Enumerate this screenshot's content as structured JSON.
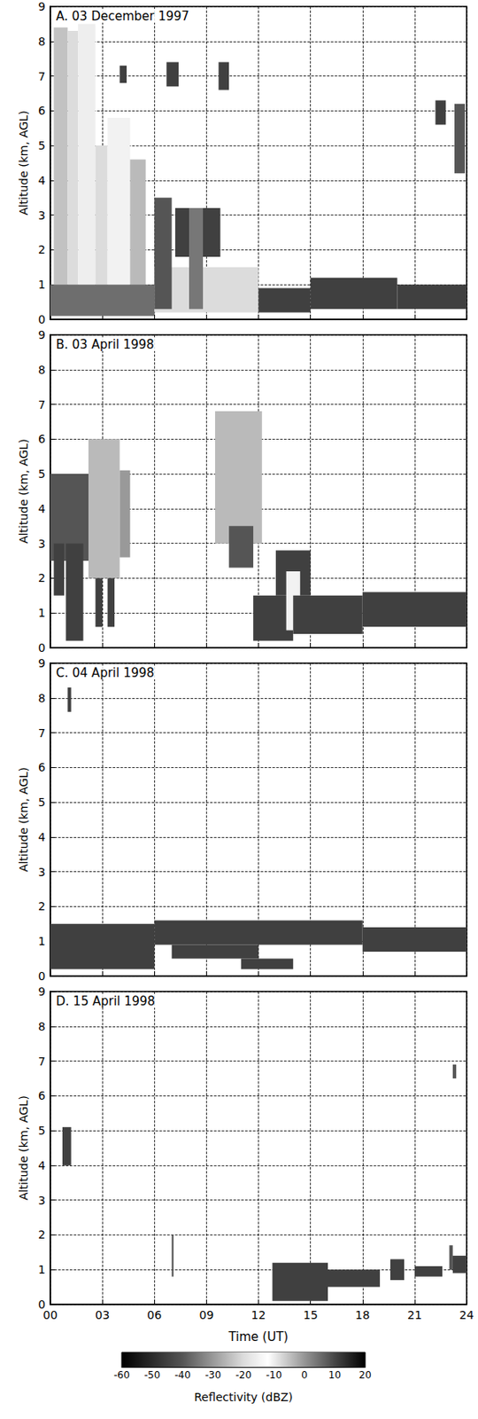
{
  "chart_data": [
    {
      "type": "heatmap",
      "title": "A. 03 December 1997",
      "ylabel": "Altitude (km, AGL)",
      "xlim": [
        0,
        24
      ],
      "xticks": [
        {
          "value": 0,
          "label": "00"
        },
        {
          "value": 3,
          "label": "03"
        },
        {
          "value": 6,
          "label": "06"
        },
        {
          "value": 9,
          "label": "09"
        },
        {
          "value": 12,
          "label": "12"
        },
        {
          "value": 15,
          "label": "15"
        },
        {
          "value": 18,
          "label": "18"
        },
        {
          "value": 21,
          "label": "21"
        },
        {
          "value": 24,
          "label": "24"
        }
      ],
      "ylim": [
        0,
        9
      ],
      "yticks": [
        0,
        1,
        2,
        3,
        4,
        5,
        6,
        7,
        8,
        9
      ],
      "grid": true,
      "tick_labels": "y",
      "cells": [
        {
          "t": [
            0.2,
            1.0
          ],
          "z": [
            0.3,
            8.4
          ],
          "dBZ": -5
        },
        {
          "t": [
            1.0,
            1.6
          ],
          "z": [
            0.3,
            8.3
          ],
          "dBZ": -20
        },
        {
          "t": [
            1.6,
            2.6
          ],
          "z": [
            0.3,
            8.5
          ],
          "dBZ": -10
        },
        {
          "t": [
            2.6,
            3.3
          ],
          "z": [
            0.3,
            5.0
          ],
          "dBZ": -20
        },
        {
          "t": [
            3.3,
            4.6
          ],
          "z": [
            0.3,
            5.8
          ],
          "dBZ": -15
        },
        {
          "t": [
            4.6,
            5.5
          ],
          "z": [
            0.3,
            4.6
          ],
          "dBZ": -25
        },
        {
          "t": [
            0.0,
            6.0
          ],
          "z": [
            0.1,
            1.0
          ],
          "dBZ": 5
        },
        {
          "t": [
            4.0,
            4.4
          ],
          "z": [
            6.8,
            7.3
          ],
          "dBZ": -45
        },
        {
          "t": [
            6.7,
            7.4
          ],
          "z": [
            6.7,
            7.4
          ],
          "dBZ": -45
        },
        {
          "t": [
            9.7,
            10.3
          ],
          "z": [
            6.6,
            7.4
          ],
          "dBZ": -45
        },
        {
          "t": [
            6.0,
            12.0
          ],
          "z": [
            0.2,
            1.5
          ],
          "dBZ": -20
        },
        {
          "t": [
            6.0,
            7.0
          ],
          "z": [
            0.3,
            3.5
          ],
          "dBZ": -40
        },
        {
          "t": [
            7.2,
            9.8
          ],
          "z": [
            1.8,
            3.2
          ],
          "dBZ": -45
        },
        {
          "t": [
            8.0,
            8.8
          ],
          "z": [
            0.3,
            3.2
          ],
          "dBZ": -35
        },
        {
          "t": [
            12.0,
            15.0
          ],
          "z": [
            0.2,
            0.9
          ],
          "dBZ": -45
        },
        {
          "t": [
            15.0,
            20.0
          ],
          "z": [
            0.3,
            1.2
          ],
          "dBZ": -45
        },
        {
          "t": [
            20.0,
            24.0
          ],
          "z": [
            0.3,
            1.0
          ],
          "dBZ": -45
        },
        {
          "t": [
            22.2,
            22.8
          ],
          "z": [
            5.6,
            6.3
          ],
          "dBZ": -45
        },
        {
          "t": [
            23.3,
            23.9
          ],
          "z": [
            4.2,
            6.2
          ],
          "dBZ": -40
        }
      ]
    },
    {
      "type": "heatmap",
      "title": "B. 03 April 1998",
      "ylabel": "Altitude (km, AGL)",
      "xlim": [
        0,
        24
      ],
      "xticks": [
        {
          "value": 0,
          "label": "00"
        },
        {
          "value": 3,
          "label": "03"
        },
        {
          "value": 6,
          "label": "06"
        },
        {
          "value": 9,
          "label": "09"
        },
        {
          "value": 12,
          "label": "12"
        },
        {
          "value": 15,
          "label": "15"
        },
        {
          "value": 18,
          "label": "18"
        },
        {
          "value": 21,
          "label": "21"
        },
        {
          "value": 24,
          "label": "24"
        }
      ],
      "ylim": [
        0,
        9
      ],
      "yticks": [
        0,
        1,
        2,
        3,
        4,
        5,
        6,
        7,
        8,
        9
      ],
      "grid": true,
      "tick_labels": "y",
      "cells": [
        {
          "t": [
            0.0,
            2.3
          ],
          "z": [
            2.5,
            5.0
          ],
          "dBZ": -40
        },
        {
          "t": [
            0.9,
            1.9
          ],
          "z": [
            0.2,
            3.0
          ],
          "dBZ": -45
        },
        {
          "t": [
            0.2,
            0.8
          ],
          "z": [
            1.5,
            3.0
          ],
          "dBZ": -45
        },
        {
          "t": [
            2.2,
            4.0
          ],
          "z": [
            2.0,
            6.0
          ],
          "dBZ": -25
        },
        {
          "t": [
            2.6,
            3.0
          ],
          "z": [
            0.6,
            2.0
          ],
          "dBZ": -45
        },
        {
          "t": [
            3.3,
            3.7
          ],
          "z": [
            0.6,
            2.0
          ],
          "dBZ": -45
        },
        {
          "t": [
            4.0,
            4.6
          ],
          "z": [
            2.6,
            5.1
          ],
          "dBZ": -30
        },
        {
          "t": [
            9.5,
            12.2
          ],
          "z": [
            3.0,
            6.8
          ],
          "dBZ": -25
        },
        {
          "t": [
            10.3,
            11.7
          ],
          "z": [
            2.3,
            3.5
          ],
          "dBZ": -40
        },
        {
          "t": [
            11.7,
            14.0
          ],
          "z": [
            0.2,
            1.5
          ],
          "dBZ": -45
        },
        {
          "t": [
            13.0,
            15.0
          ],
          "z": [
            1.5,
            2.8
          ],
          "dBZ": -45
        },
        {
          "t": [
            13.6,
            14.4
          ],
          "z": [
            0.5,
            2.2
          ],
          "dBZ": -15
        },
        {
          "t": [
            14.0,
            18.0
          ],
          "z": [
            0.4,
            1.5
          ],
          "dBZ": -45
        },
        {
          "t": [
            18.0,
            24.0
          ],
          "z": [
            0.6,
            1.6
          ],
          "dBZ": -45
        }
      ]
    },
    {
      "type": "heatmap",
      "title": "C. 04 April 1998",
      "ylabel": "Altitude (km, AGL)",
      "xlim": [
        0,
        24
      ],
      "xticks": [
        {
          "value": 0,
          "label": "00"
        },
        {
          "value": 3,
          "label": "03"
        },
        {
          "value": 6,
          "label": "06"
        },
        {
          "value": 9,
          "label": "09"
        },
        {
          "value": 12,
          "label": "12"
        },
        {
          "value": 15,
          "label": "15"
        },
        {
          "value": 18,
          "label": "18"
        },
        {
          "value": 21,
          "label": "21"
        },
        {
          "value": 24,
          "label": "24"
        }
      ],
      "ylim": [
        0,
        9
      ],
      "yticks": [
        0,
        1,
        2,
        3,
        4,
        5,
        6,
        7,
        8,
        9
      ],
      "grid": true,
      "tick_labels": "y",
      "cells": [
        {
          "t": [
            0.0,
            6.0
          ],
          "z": [
            0.2,
            1.5
          ],
          "dBZ": -45
        },
        {
          "t": [
            6.0,
            18.0
          ],
          "z": [
            0.9,
            1.6
          ],
          "dBZ": -45
        },
        {
          "t": [
            7.0,
            12.0
          ],
          "z": [
            0.5,
            0.9
          ],
          "dBZ": -45
        },
        {
          "t": [
            11.0,
            14.0
          ],
          "z": [
            0.2,
            0.5
          ],
          "dBZ": -45
        },
        {
          "t": [
            18.0,
            24.0
          ],
          "z": [
            0.7,
            1.4
          ],
          "dBZ": -45
        },
        {
          "t": [
            1.0,
            1.2
          ],
          "z": [
            7.6,
            8.3
          ],
          "dBZ": -45
        }
      ]
    },
    {
      "type": "heatmap",
      "title": "D. 15 April 1998",
      "xlabel": "Time (UT)",
      "ylabel": "Altitude (km, AGL)",
      "xlim": [
        0,
        24
      ],
      "xticks": [
        {
          "value": 0,
          "label": "00"
        },
        {
          "value": 3,
          "label": "03"
        },
        {
          "value": 6,
          "label": "06"
        },
        {
          "value": 9,
          "label": "09"
        },
        {
          "value": 12,
          "label": "12"
        },
        {
          "value": 15,
          "label": "15"
        },
        {
          "value": 18,
          "label": "18"
        },
        {
          "value": 21,
          "label": "21"
        },
        {
          "value": 24,
          "label": "24"
        }
      ],
      "ylim": [
        0,
        9
      ],
      "yticks": [
        0,
        1,
        2,
        3,
        4,
        5,
        6,
        7,
        8,
        9
      ],
      "grid": true,
      "cells": [
        {
          "t": [
            0.7,
            1.2
          ],
          "z": [
            4.0,
            5.1
          ],
          "dBZ": -45
        },
        {
          "t": [
            7.0,
            7.1
          ],
          "z": [
            0.8,
            2.0
          ],
          "dBZ": -40
        },
        {
          "t": [
            12.8,
            16.0
          ],
          "z": [
            0.1,
            1.2
          ],
          "dBZ": -45
        },
        {
          "t": [
            16.0,
            19.0
          ],
          "z": [
            0.5,
            1.0
          ],
          "dBZ": -45
        },
        {
          "t": [
            19.6,
            20.4
          ],
          "z": [
            0.7,
            1.3
          ],
          "dBZ": -45
        },
        {
          "t": [
            21.0,
            22.6
          ],
          "z": [
            0.8,
            1.1
          ],
          "dBZ": -45
        },
        {
          "t": [
            23.2,
            24.0
          ],
          "z": [
            0.9,
            1.4
          ],
          "dBZ": -45
        },
        {
          "t": [
            23.0,
            23.2
          ],
          "z": [
            1.0,
            1.7
          ],
          "dBZ": -40
        },
        {
          "t": [
            23.2,
            23.4
          ],
          "z": [
            6.5,
            6.9
          ],
          "dBZ": -40
        }
      ],
      "colorbar": {
        "range": [
          -60,
          20
        ],
        "ticks": [
          -60,
          -50,
          -40,
          -30,
          -20,
          -10,
          0,
          10,
          20
        ],
        "label": "Reflectivity (dBZ)"
      }
    }
  ]
}
